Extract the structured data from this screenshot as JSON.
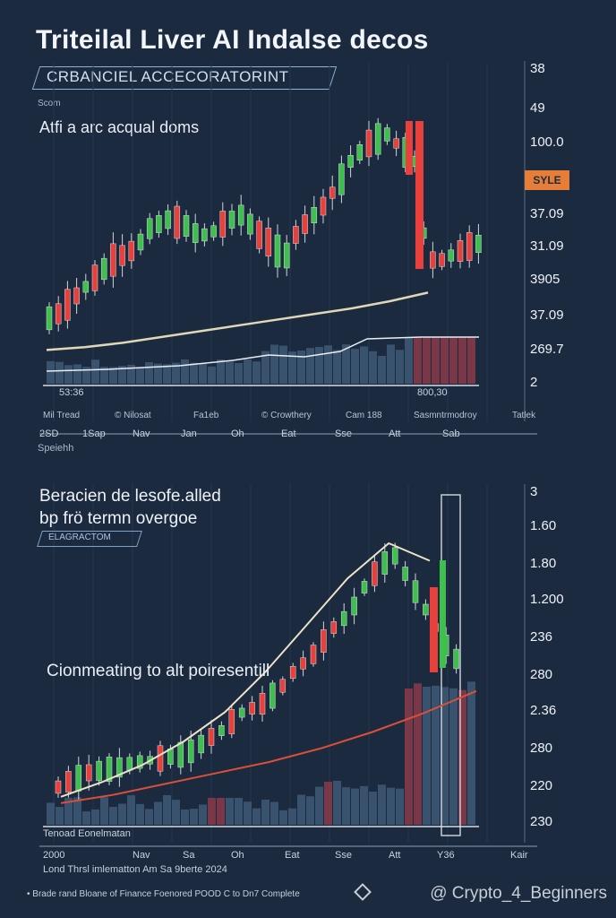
{
  "title": "Triteilal Liver AI Indalse decos",
  "top_badge": "CRBANCIEL  ACCECORATORINT",
  "top_small": "Scom",
  "top_subtitle": "Atfi a arc acqual doms",
  "right_tag": "SYLE",
  "x_bar_left": "53:36",
  "x_bar_right": "800,30",
  "top_categories": [
    "Mil Tread",
    "© Nilosat",
    "Fa1eb",
    "© Crowthery",
    "Cam 188",
    "Sasmntrmodroy",
    "Tatlek"
  ],
  "top_ticks": [
    "2SD",
    "1Sap",
    "Nav",
    "Jan",
    "Oh",
    "Eat",
    "Sse",
    "Att",
    "Sab"
  ],
  "top_footer": "Speiehh",
  "bottom_subtitle_1": "Beracien de lesofe.alled",
  "bottom_subtitle_2": "bp frö termn overgoe",
  "bottom_badge": "ELAGRACTOM",
  "bottom_midtext": "Cionmeating to alt poiresentill",
  "bottom_bar_label": "Tenoad Eonelmatan",
  "bottom_ticks": [
    "2000",
    "Nav",
    "Sa",
    "Oh",
    "Eat",
    "Sse",
    "Att",
    "Y36",
    "Kair"
  ],
  "footer_line1": "Lond Thrsl imlematton Am Sa 9berte 2024",
  "footer_line2": "• Brade rand Bloane of Finance Foenored POOD C to Dn7 Complete",
  "watermark": "@ Crypto_4_Beginners",
  "colors": {
    "bg": "#1b2a3e",
    "up": "#3fbf4e",
    "down": "#e8403c",
    "wick": "#cfd6de",
    "trend": "#e0d6b8",
    "red_line": "#d9503a",
    "vol": "#3e5a78",
    "vol_hi": "#8a3a4a"
  },
  "chart_data": [
    {
      "type": "line",
      "y_axis_labels": [
        "38",
        "49",
        "100.0",
        "37.09",
        "31.09",
        "3905",
        "37.09",
        "269.7",
        "2"
      ],
      "candles_up_down": "mixed, rising then sharp drop and partial recovery",
      "trend_values": [
        0.06,
        0.08,
        0.11,
        0.15,
        0.19,
        0.23,
        0.27,
        0.31,
        0.35,
        0.4,
        0.46
      ]
    },
    {
      "type": "line",
      "y_axis_labels": [
        "3",
        "1.60",
        "1.80",
        "1.200",
        "236",
        "280",
        "2.36",
        "280",
        "220",
        "230"
      ],
      "candles_up_down": "rising to peak then volatile",
      "trend_values": [
        0.05,
        0.1,
        0.16,
        0.24,
        0.34,
        0.48,
        0.64,
        0.8,
        0.92,
        0.86
      ],
      "red_line_values": [
        0.03,
        0.06,
        0.1,
        0.14,
        0.18,
        0.23,
        0.29,
        0.36,
        0.44
      ]
    }
  ]
}
